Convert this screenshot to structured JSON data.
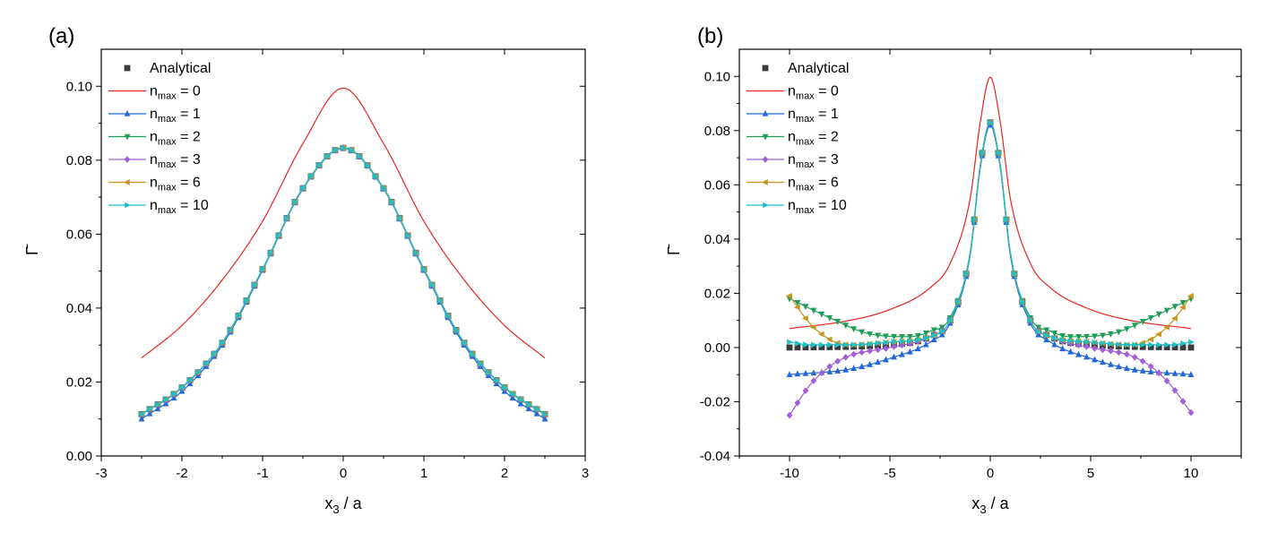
{
  "chart_data": [
    {
      "type": "line",
      "panel_label": "(a)",
      "xlabel_main": "x",
      "xlabel_sub": "3",
      "xlabel_rest": " / a",
      "ylabel": "Γ̄",
      "xlim": [
        -3,
        3
      ],
      "ylim": [
        0.0,
        0.11
      ],
      "xticks": [
        -3,
        -2,
        -1,
        0,
        1,
        2,
        3
      ],
      "xtick_labels": [
        "-3",
        "-2",
        "-1",
        "0",
        "1",
        "2",
        "3"
      ],
      "yticks": [
        0.0,
        0.02,
        0.04,
        0.06,
        0.08,
        0.1
      ],
      "ytick_labels": [
        "0.00",
        "0.02",
        "0.04",
        "0.06",
        "0.08",
        "0.10"
      ],
      "legend_position": "top-left",
      "x_range": [
        -2.5,
        2.5
      ],
      "series": [
        {
          "name": "Analytical",
          "name_sub": "",
          "name_rest": "",
          "color": "#3a3a3a",
          "marker": "square",
          "line": false,
          "anchors": [
            [
              -2.5,
              0.0113
            ],
            [
              -2.0,
              0.0185
            ],
            [
              -1.5,
              0.0306
            ],
            [
              -1.0,
              0.0505
            ],
            [
              -0.5,
              0.0724
            ],
            [
              0.0,
              0.0833
            ],
            [
              0.5,
              0.0724
            ],
            [
              1.0,
              0.0505
            ],
            [
              1.5,
              0.0306
            ],
            [
              2.0,
              0.0185
            ],
            [
              2.5,
              0.0113
            ]
          ]
        },
        {
          "name": "n",
          "name_sub": "max",
          "name_rest": " = 0",
          "color": "#e8251e",
          "marker": "none",
          "line": true,
          "anchors": [
            [
              -2.5,
              0.0265
            ],
            [
              -2.0,
              0.0353
            ],
            [
              -1.5,
              0.0476
            ],
            [
              -1.0,
              0.0635
            ],
            [
              -0.5,
              0.0845
            ],
            [
              0.0,
              0.0995
            ],
            [
              0.5,
              0.0845
            ],
            [
              1.0,
              0.0635
            ],
            [
              1.5,
              0.0476
            ],
            [
              2.0,
              0.0353
            ],
            [
              2.5,
              0.0265
            ]
          ]
        },
        {
          "name": "n",
          "name_sub": "max",
          "name_rest": " = 1",
          "color": "#2167d6",
          "marker": "triangle-up",
          "line": true,
          "anchors": [
            [
              -2.5,
              0.01
            ],
            [
              -2.0,
              0.0175
            ],
            [
              -1.5,
              0.03
            ],
            [
              -1.0,
              0.0502
            ],
            [
              -0.5,
              0.0722
            ],
            [
              0.0,
              0.0832
            ],
            [
              0.5,
              0.0722
            ],
            [
              1.0,
              0.0502
            ],
            [
              1.5,
              0.03
            ],
            [
              2.0,
              0.0175
            ],
            [
              2.5,
              0.01
            ]
          ]
        },
        {
          "name": "n",
          "name_sub": "max",
          "name_rest": " = 2",
          "color": "#1f9e5a",
          "marker": "triangle-down",
          "line": true,
          "anchors": [
            [
              -2.5,
              0.0114
            ],
            [
              -2.0,
              0.0186
            ],
            [
              -1.5,
              0.0307
            ],
            [
              -1.0,
              0.0506
            ],
            [
              -0.5,
              0.0725
            ],
            [
              0.0,
              0.0834
            ],
            [
              0.5,
              0.0725
            ],
            [
              1.0,
              0.0506
            ],
            [
              1.5,
              0.0307
            ],
            [
              2.0,
              0.0186
            ],
            [
              2.5,
              0.0114
            ]
          ]
        },
        {
          "name": "n",
          "name_sub": "max",
          "name_rest": " = 3",
          "color": "#a25fd6",
          "marker": "diamond",
          "line": true,
          "anchors": [
            [
              -2.5,
              0.0112
            ],
            [
              -2.0,
              0.0184
            ],
            [
              -1.5,
              0.0305
            ],
            [
              -1.0,
              0.0505
            ],
            [
              -0.5,
              0.0724
            ],
            [
              0.0,
              0.0833
            ],
            [
              0.5,
              0.0724
            ],
            [
              1.0,
              0.0505
            ],
            [
              1.5,
              0.0305
            ],
            [
              2.0,
              0.0184
            ],
            [
              2.5,
              0.0112
            ]
          ]
        },
        {
          "name": "n",
          "name_sub": "max",
          "name_rest": " = 6",
          "color": "#c8951b",
          "marker": "triangle-left",
          "line": true,
          "anchors": [
            [
              -2.5,
              0.0113
            ],
            [
              -2.0,
              0.0185
            ],
            [
              -1.5,
              0.0306
            ],
            [
              -1.0,
              0.0505
            ],
            [
              -0.5,
              0.0724
            ],
            [
              0.0,
              0.0833
            ],
            [
              0.5,
              0.0724
            ],
            [
              1.0,
              0.0505
            ],
            [
              1.5,
              0.0306
            ],
            [
              2.0,
              0.0185
            ],
            [
              2.5,
              0.0113
            ]
          ]
        },
        {
          "name": "n",
          "name_sub": "max",
          "name_rest": " = 10",
          "color": "#1fc0c8",
          "marker": "triangle-right",
          "line": true,
          "anchors": [
            [
              -2.5,
              0.0113
            ],
            [
              -2.0,
              0.0185
            ],
            [
              -1.5,
              0.0306
            ],
            [
              -1.0,
              0.0505
            ],
            [
              -0.5,
              0.0724
            ],
            [
              0.0,
              0.0833
            ],
            [
              0.5,
              0.0724
            ],
            [
              1.0,
              0.0505
            ],
            [
              1.5,
              0.0306
            ],
            [
              2.0,
              0.0185
            ],
            [
              2.5,
              0.0113
            ]
          ]
        }
      ]
    },
    {
      "type": "line",
      "panel_label": "(b)",
      "xlabel_main": "x",
      "xlabel_sub": "3",
      "xlabel_rest": " / a",
      "ylabel": "Γ̄",
      "xlim": [
        -12.5,
        12.5
      ],
      "ylim": [
        -0.04,
        0.11
      ],
      "xticks": [
        -10,
        -5,
        0,
        5,
        10
      ],
      "xtick_labels": [
        "-10",
        "-5",
        "0",
        "5",
        "10"
      ],
      "yticks": [
        -0.04,
        -0.02,
        0.0,
        0.02,
        0.04,
        0.06,
        0.08,
        0.1
      ],
      "ytick_labels": [
        "-0.04",
        "-0.02",
        "0.00",
        "0.02",
        "0.04",
        "0.06",
        "0.08",
        "0.10"
      ],
      "legend_position": "top-left",
      "x_range": [
        -10,
        10
      ],
      "series": [
        {
          "name": "Analytical",
          "name_sub": "",
          "name_rest": "",
          "color": "#3a3a3a",
          "marker": "square",
          "line": false,
          "anchors": [
            [
              -10,
              0.0
            ],
            [
              -5,
              0.001
            ],
            [
              -3,
              0.004
            ],
            [
              -2,
              0.01
            ],
            [
              -1,
              0.035
            ],
            [
              -0.5,
              0.067
            ],
            [
              0,
              0.083
            ],
            [
              0.5,
              0.067
            ],
            [
              1,
              0.035
            ],
            [
              2,
              0.01
            ],
            [
              3,
              0.004
            ],
            [
              5,
              0.001
            ],
            [
              10,
              0.0
            ]
          ]
        },
        {
          "name": "n",
          "name_sub": "max",
          "name_rest": " = 0",
          "color": "#e8251e",
          "marker": "none",
          "line": true,
          "anchors": [
            [
              -10,
              0.007
            ],
            [
              -7,
              0.01
            ],
            [
              -5,
              0.014
            ],
            [
              -3,
              0.022
            ],
            [
              -2,
              0.031
            ],
            [
              -1,
              0.055
            ],
            [
              -0.5,
              0.083
            ],
            [
              0,
              0.0997
            ],
            [
              0.5,
              0.083
            ],
            [
              1,
              0.055
            ],
            [
              2,
              0.031
            ],
            [
              3,
              0.022
            ],
            [
              5,
              0.014
            ],
            [
              7,
              0.01
            ],
            [
              10,
              0.007
            ]
          ]
        },
        {
          "name": "n",
          "name_sub": "max",
          "name_rest": " = 1",
          "color": "#2167d6",
          "marker": "triangle-up",
          "line": true,
          "anchors": [
            [
              -10,
              -0.01
            ],
            [
              -7,
              -0.008
            ],
            [
              -5,
              -0.004
            ],
            [
              -3,
              0.002
            ],
            [
              -2,
              0.009
            ],
            [
              -1,
              0.034
            ],
            [
              -0.5,
              0.066
            ],
            [
              0,
              0.082
            ],
            [
              0.5,
              0.066
            ],
            [
              1,
              0.034
            ],
            [
              2,
              0.009
            ],
            [
              3,
              0.002
            ],
            [
              5,
              -0.004
            ],
            [
              7,
              -0.008
            ],
            [
              10,
              -0.01
            ]
          ]
        },
        {
          "name": "n",
          "name_sub": "max",
          "name_rest": " = 2",
          "color": "#1f9e5a",
          "marker": "triangle-down",
          "line": true,
          "anchors": [
            [
              -10,
              0.018
            ],
            [
              -8,
              0.011
            ],
            [
              -6,
              0.005
            ],
            [
              -4,
              0.004
            ],
            [
              -3,
              0.006
            ],
            [
              -2,
              0.011
            ],
            [
              -1,
              0.035
            ],
            [
              -0.5,
              0.067
            ],
            [
              0,
              0.083
            ],
            [
              0.5,
              0.067
            ],
            [
              1,
              0.035
            ],
            [
              2,
              0.011
            ],
            [
              3,
              0.006
            ],
            [
              4,
              0.004
            ],
            [
              6,
              0.005
            ],
            [
              8,
              0.011
            ],
            [
              10,
              0.018
            ]
          ]
        },
        {
          "name": "n",
          "name_sub": "max",
          "name_rest": " = 3",
          "color": "#a25fd6",
          "marker": "diamond",
          "line": true,
          "anchors": [
            [
              -10,
              -0.025
            ],
            [
              -9,
              -0.014
            ],
            [
              -8,
              -0.007
            ],
            [
              -7,
              -0.003
            ],
            [
              -5,
              0.0
            ],
            [
              -3,
              0.004
            ],
            [
              -2,
              0.01
            ],
            [
              -1,
              0.035
            ],
            [
              -0.5,
              0.067
            ],
            [
              0,
              0.083
            ],
            [
              0.5,
              0.067
            ],
            [
              1,
              0.035
            ],
            [
              2,
              0.01
            ],
            [
              3,
              0.004
            ],
            [
              5,
              0.0
            ],
            [
              7,
              -0.003
            ],
            [
              8,
              -0.007
            ],
            [
              9,
              -0.014
            ],
            [
              10,
              -0.024
            ]
          ]
        },
        {
          "name": "n",
          "name_sub": "max",
          "name_rest": " = 6",
          "color": "#c8951b",
          "marker": "triangle-left",
          "line": true,
          "anchors": [
            [
              -10,
              0.019
            ],
            [
              -9,
              0.009
            ],
            [
              -8,
              0.003
            ],
            [
              -7,
              0.001
            ],
            [
              -5,
              0.002
            ],
            [
              -3,
              0.004
            ],
            [
              -2,
              0.01
            ],
            [
              -1,
              0.035
            ],
            [
              -0.5,
              0.067
            ],
            [
              0,
              0.083
            ],
            [
              0.5,
              0.067
            ],
            [
              1,
              0.035
            ],
            [
              2,
              0.01
            ],
            [
              3,
              0.004
            ],
            [
              5,
              0.002
            ],
            [
              7,
              0.001
            ],
            [
              8,
              0.003
            ],
            [
              9,
              0.009
            ],
            [
              10,
              0.019
            ]
          ]
        },
        {
          "name": "n",
          "name_sub": "max",
          "name_rest": " = 10",
          "color": "#1fc0c8",
          "marker": "triangle-right",
          "line": true,
          "anchors": [
            [
              -10,
              0.002
            ],
            [
              -9,
              0.001
            ],
            [
              -7,
              0.001
            ],
            [
              -5,
              0.002
            ],
            [
              -3,
              0.004
            ],
            [
              -2,
              0.01
            ],
            [
              -1,
              0.035
            ],
            [
              -0.5,
              0.067
            ],
            [
              0,
              0.083
            ],
            [
              0.5,
              0.067
            ],
            [
              1,
              0.035
            ],
            [
              2,
              0.01
            ],
            [
              3,
              0.004
            ],
            [
              5,
              0.002
            ],
            [
              7,
              0.001
            ],
            [
              9,
              0.001
            ],
            [
              10,
              0.002
            ]
          ]
        }
      ]
    }
  ]
}
